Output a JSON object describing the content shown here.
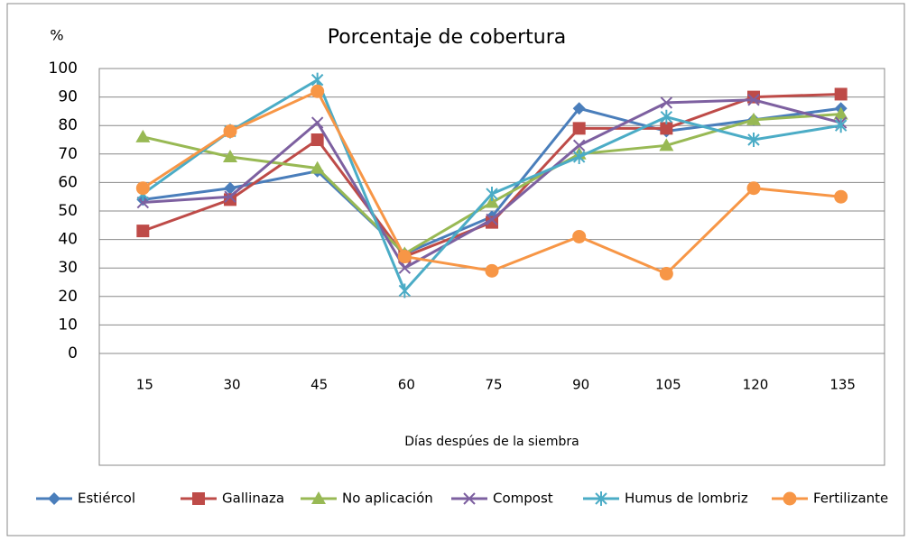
{
  "chart_data": {
    "type": "line",
    "title": "Porcentaje de cobertura",
    "y_label": "%",
    "x_label": "Días despúes de la siembra",
    "categories": [
      "15",
      "30",
      "45",
      "60",
      "75",
      "90",
      "105",
      "120",
      "135"
    ],
    "series": [
      {
        "name": "Estiércol",
        "color": "#4a7ebb",
        "marker": "diamond",
        "values": [
          54,
          58,
          64,
          35,
          48,
          86,
          78,
          82,
          86
        ]
      },
      {
        "name": "Gallinaza",
        "color": "#be4b48",
        "marker": "square",
        "values": [
          43,
          54,
          75,
          34,
          46,
          79,
          79,
          90,
          91
        ]
      },
      {
        "name": "No aplicación",
        "color": "#98b954",
        "marker": "triangle",
        "values": [
          76,
          69,
          65,
          35,
          53,
          70,
          73,
          82,
          84
        ]
      },
      {
        "name": "Compost",
        "color": "#7d60a0",
        "marker": "x",
        "values": [
          53,
          55,
          81,
          30,
          47,
          73,
          88,
          89,
          81
        ]
      },
      {
        "name": "Humus de lombriz",
        "color": "#4bacc6",
        "marker": "star",
        "values": [
          56,
          78,
          96,
          22,
          56,
          69,
          83,
          75,
          80
        ]
      },
      {
        "name": "Fertilizante",
        "color": "#f79646",
        "marker": "circle",
        "values": [
          58,
          78,
          92,
          34,
          29,
          41,
          28,
          58,
          55
        ]
      }
    ],
    "ylim": [
      0,
      100
    ],
    "yticks": [
      0,
      10,
      20,
      30,
      40,
      50,
      60,
      70,
      80,
      90,
      100
    ],
    "grid": true,
    "legend": "bottom"
  }
}
